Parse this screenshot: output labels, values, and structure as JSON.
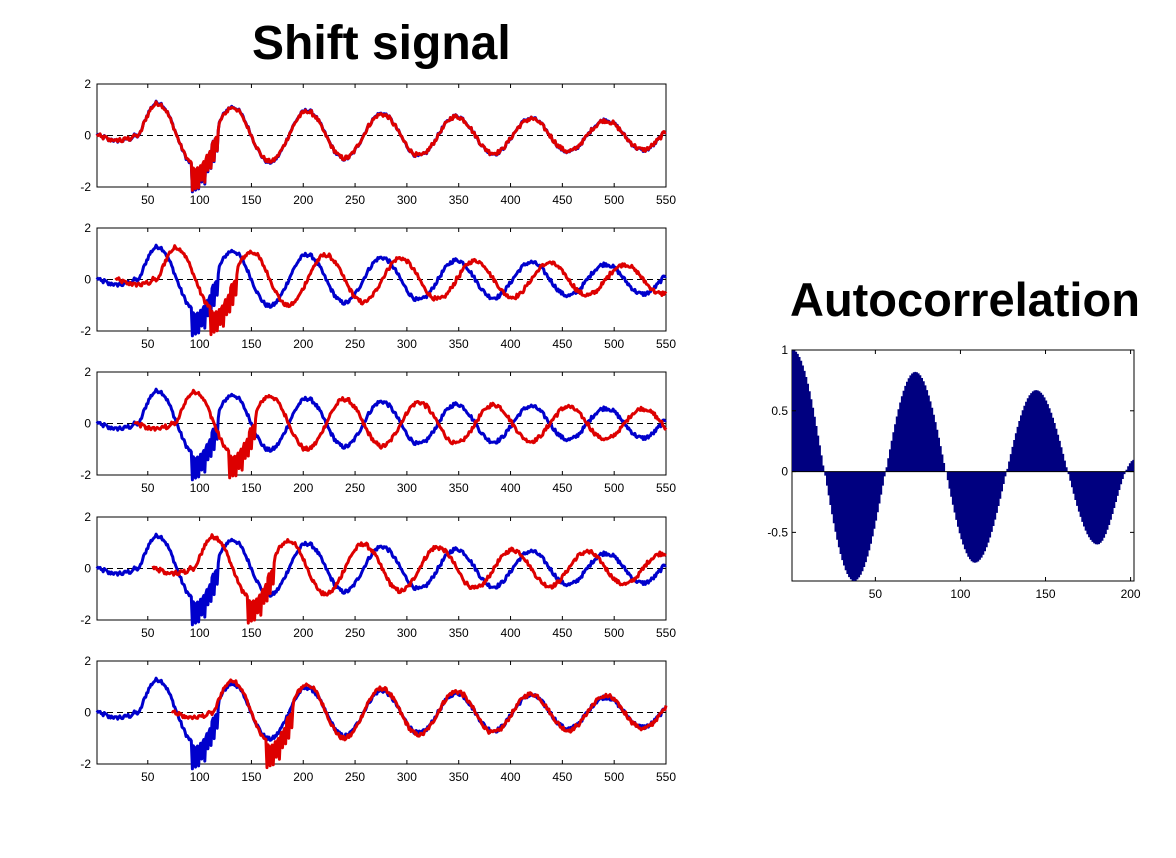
{
  "titles": {
    "shift": "Shift signal",
    "autocorrelation": "Autocorrelation"
  },
  "colors": {
    "signal": "#0000cc",
    "shifted": "#dd0000",
    "autocorrelation_fill": "#000080",
    "zero_line": "#000000"
  },
  "chart_data": [
    {
      "type": "line",
      "title": "Shift signal",
      "panel": 1,
      "xlim": [
        1,
        550
      ],
      "ylim": [
        -2,
        2
      ],
      "x_ticks": [
        50,
        100,
        150,
        200,
        250,
        300,
        350,
        400,
        450,
        500,
        550
      ],
      "y_ticks": [
        -2,
        0,
        2
      ],
      "reference_line": {
        "y": 0,
        "style": "dashed"
      },
      "series": [
        {
          "color": "#0000cc",
          "x_start": 1
        },
        {
          "color": "#dd0000",
          "x_start": 1,
          "shift": 0
        }
      ]
    },
    {
      "type": "line",
      "panel": 2,
      "xlim": [
        1,
        550
      ],
      "ylim": [
        -2,
        2
      ],
      "x_ticks": [
        50,
        100,
        150,
        200,
        250,
        300,
        350,
        400,
        450,
        500,
        550
      ],
      "y_ticks": [
        -2,
        0,
        2
      ],
      "reference_line": {
        "y": 0,
        "style": "dashed"
      },
      "series": [
        {
          "color": "#0000cc",
          "x_start": 1
        },
        {
          "color": "#dd0000",
          "x_start": 18,
          "shift": 18
        }
      ]
    },
    {
      "type": "line",
      "panel": 3,
      "xlim": [
        1,
        550
      ],
      "ylim": [
        -2,
        2
      ],
      "x_ticks": [
        50,
        100,
        150,
        200,
        250,
        300,
        350,
        400,
        450,
        500,
        550
      ],
      "y_ticks": [
        -2,
        0,
        2
      ],
      "reference_line": {
        "y": 0,
        "style": "dashed"
      },
      "series": [
        {
          "color": "#0000cc",
          "x_start": 1
        },
        {
          "color": "#dd0000",
          "x_start": 36,
          "shift": 36
        }
      ]
    },
    {
      "type": "line",
      "panel": 4,
      "xlim": [
        1,
        550
      ],
      "ylim": [
        -2,
        2
      ],
      "x_ticks": [
        50,
        100,
        150,
        200,
        250,
        300,
        350,
        400,
        450,
        500,
        550
      ],
      "y_ticks": [
        -2,
        0,
        2
      ],
      "reference_line": {
        "y": 0,
        "style": "dashed"
      },
      "series": [
        {
          "color": "#0000cc",
          "x_start": 1
        },
        {
          "color": "#dd0000",
          "x_start": 54,
          "shift": 54
        }
      ]
    },
    {
      "type": "line",
      "panel": 5,
      "xlim": [
        1,
        550
      ],
      "ylim": [
        -2,
        2
      ],
      "x_ticks": [
        50,
        100,
        150,
        200,
        250,
        300,
        350,
        400,
        450,
        500,
        550
      ],
      "y_ticks": [
        -2,
        0,
        2
      ],
      "reference_line": {
        "y": 0,
        "style": "dashed"
      },
      "series": [
        {
          "color": "#0000cc",
          "x_start": 1
        },
        {
          "color": "#dd0000",
          "x_start": 72,
          "shift": 72
        }
      ]
    },
    {
      "type": "bar",
      "title": "Autocorrelation",
      "xlim": [
        1,
        202
      ],
      "ylim": [
        -0.9,
        1
      ],
      "x_ticks": [
        50,
        100,
        150,
        200
      ],
      "y_ticks": [
        -0.5,
        0,
        0.5,
        1
      ],
      "y_tick_labels": [
        "-0.5",
        "0",
        "0.5",
        "1"
      ],
      "shape": "damped_cosine",
      "extrema": [
        {
          "lag": 1,
          "value": 1.0
        },
        {
          "lag": 37,
          "value": -0.9
        },
        {
          "lag": 73,
          "value": 0.82
        },
        {
          "lag": 108,
          "value": -0.75
        },
        {
          "lag": 144,
          "value": 0.67
        },
        {
          "lag": 180,
          "value": -0.6
        },
        {
          "lag": 202,
          "value": 0.1
        }
      ]
    }
  ]
}
